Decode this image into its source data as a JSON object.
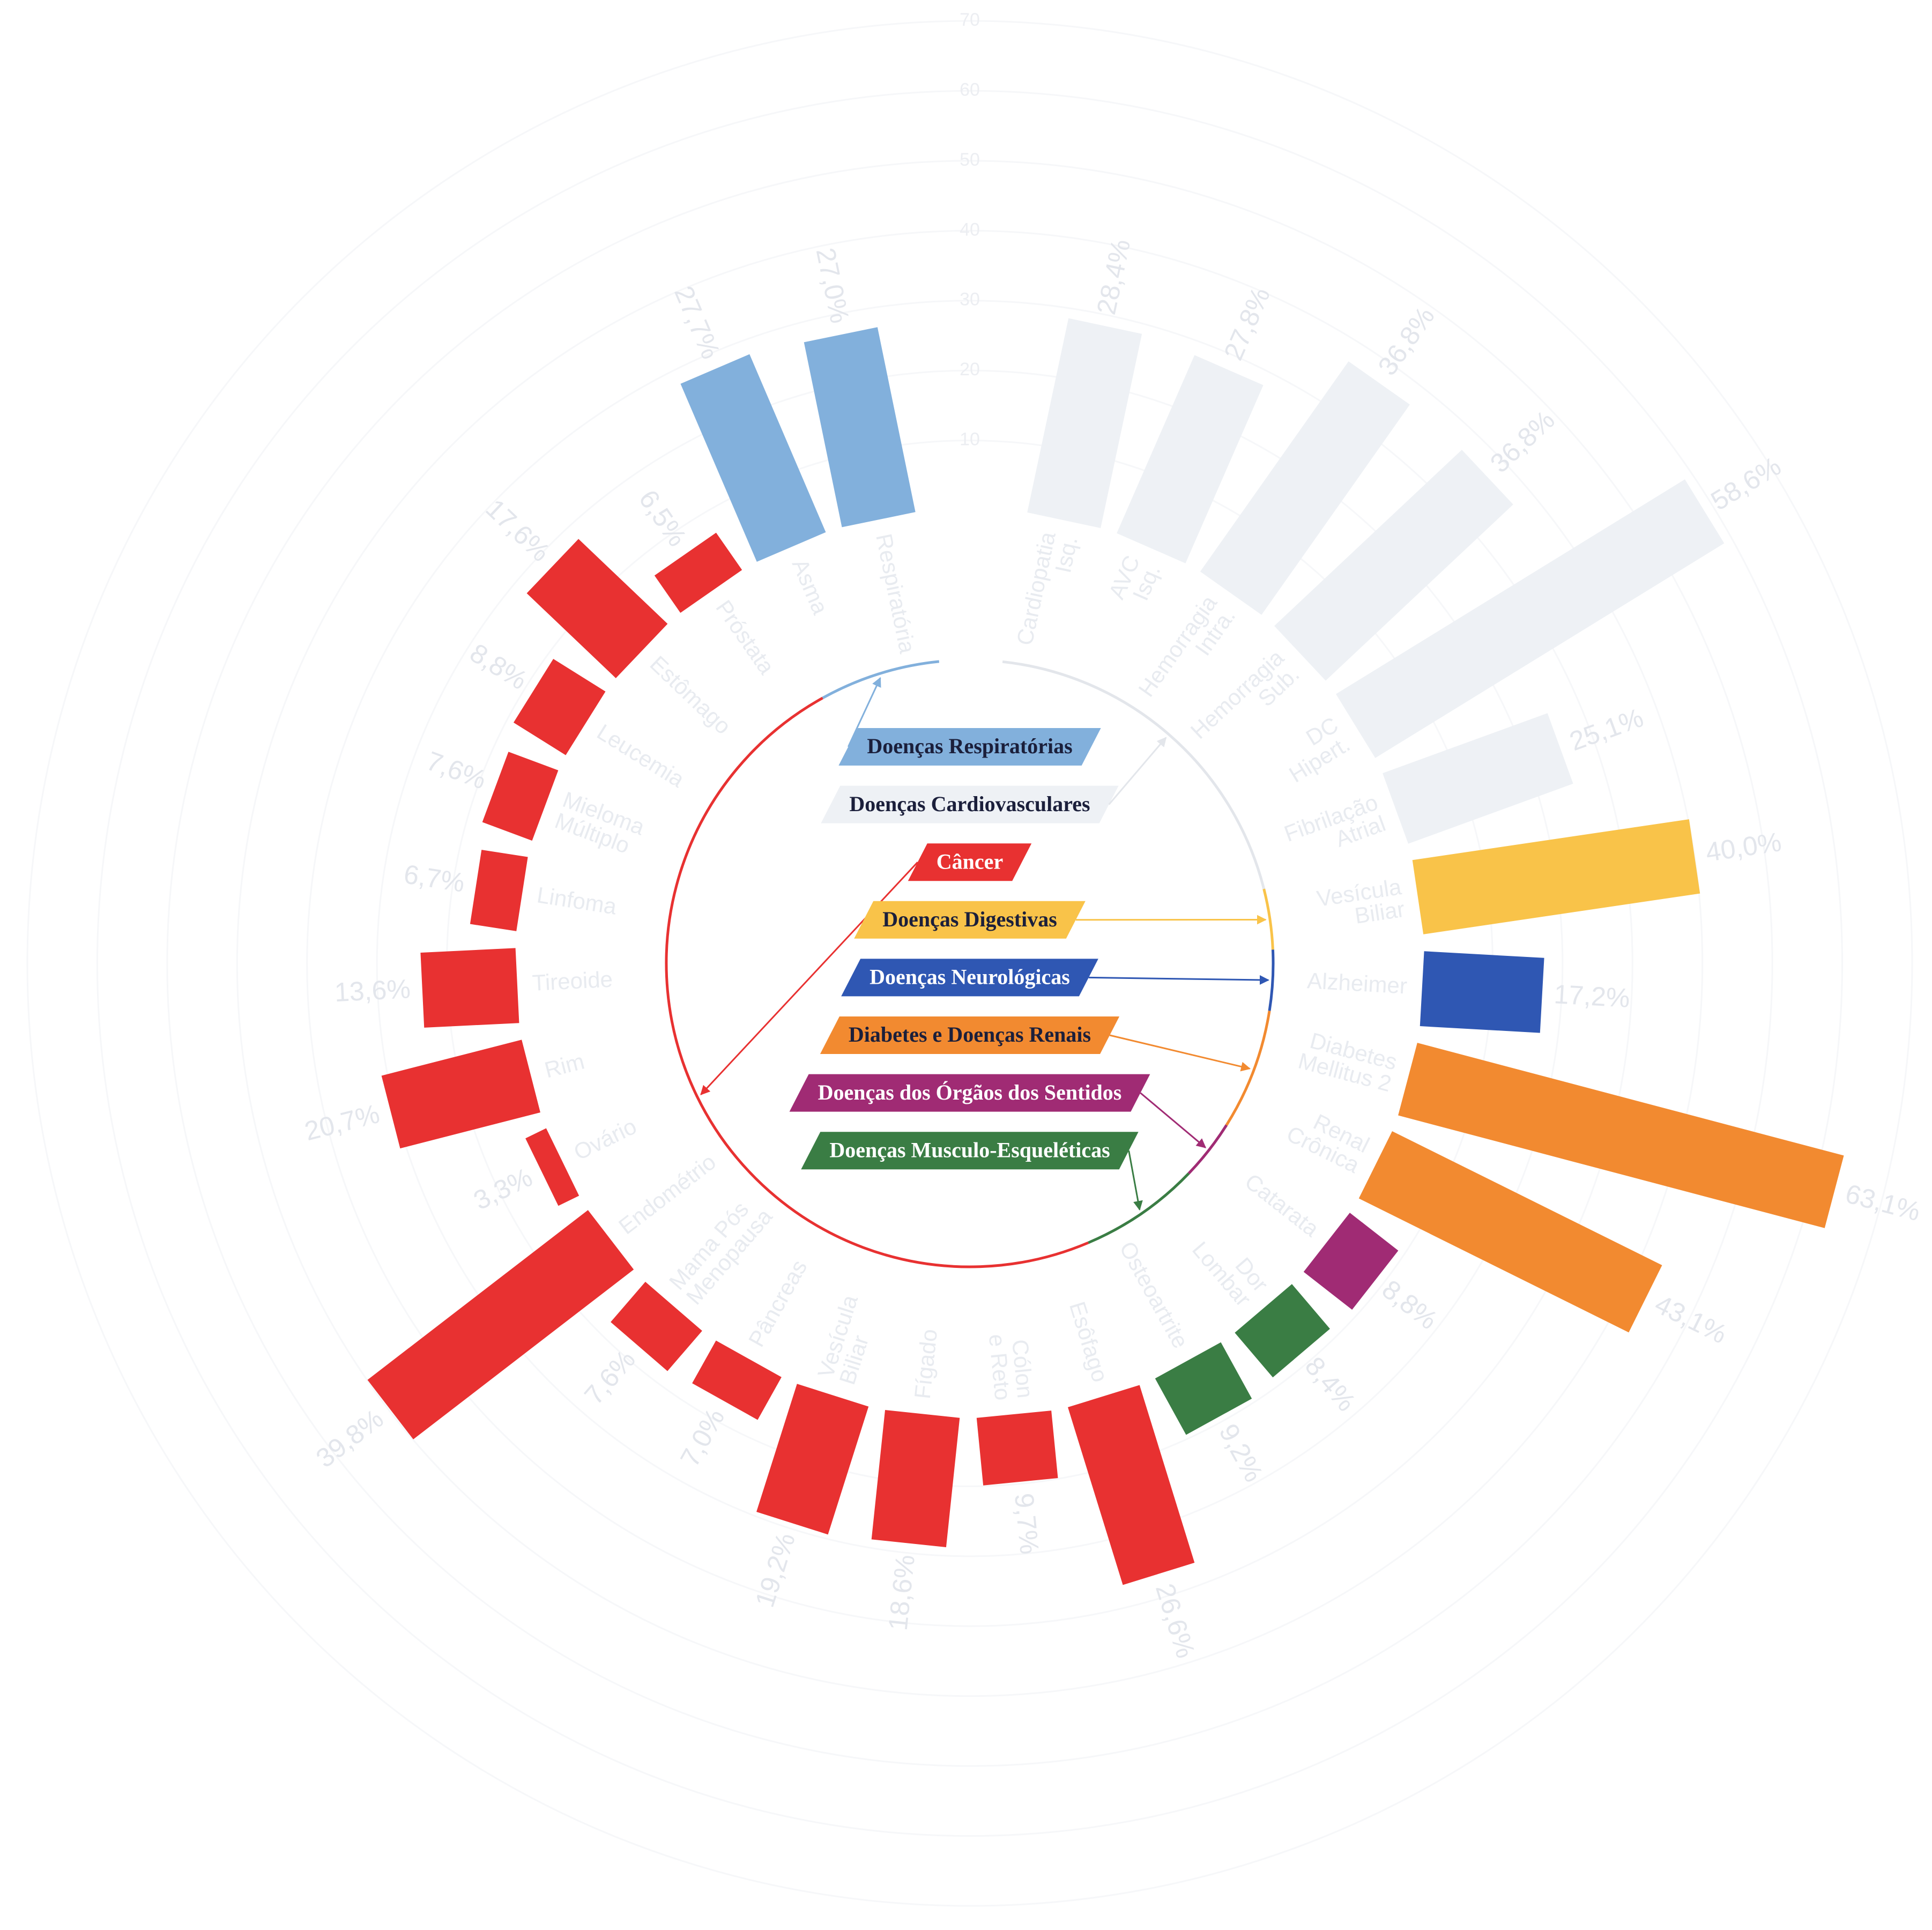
{
  "chart_data": {
    "type": "radial-bar",
    "categories": [
      "Cardiopatia\nIsq.",
      "AVC\nIsq.",
      "Hemorragia\nIntra.",
      "Hemorragia\nSub.",
      "DC\nHipert.",
      "Fibrilação\nAtrial",
      "Vesícula\nBiliar",
      "Alzheimer",
      "Diabetes\nMellitus 2",
      "Renal\nCrônica",
      "Catarata",
      "Dor\nLombar",
      "Osteoartrite",
      "Esôfago",
      "Cólon\ne Reto",
      "Fígado",
      "Vesícula\nBiliar",
      "Pâncreas",
      "Mama Pós\nMenopausa",
      "Endométrio",
      "Ovário",
      "Rim",
      "Tireoide",
      "Linfoma",
      "Mieloma\nMúltiplo",
      "Leucemia",
      "Estômago",
      "Próstata",
      "Asma",
      "Respiratória"
    ],
    "series": [
      {
        "name": "Doenças Respiratórias",
        "color": "#82b0dc",
        "values": [
          null,
          null,
          null,
          null,
          null,
          null,
          null,
          null,
          null,
          null,
          null,
          null,
          null,
          null,
          null,
          null,
          null,
          null,
          null,
          null,
          null,
          null,
          null,
          null,
          null,
          null,
          null,
          null,
          27.7,
          27.0
        ]
      },
      {
        "name": "Doenças Cardiovasculares",
        "color": "#eef1f5",
        "values": [
          28.4,
          27.8,
          36.8,
          36.8,
          58.6,
          25.1,
          null,
          null,
          null,
          null,
          null,
          null,
          null,
          null,
          null,
          null,
          null,
          null,
          null,
          null,
          null,
          null,
          null,
          null,
          null,
          null,
          null,
          null,
          null,
          null
        ]
      },
      {
        "name": "Câncer",
        "color": "#e83131",
        "values": [
          null,
          null,
          null,
          null,
          null,
          null,
          null,
          null,
          null,
          null,
          null,
          null,
          null,
          26.6,
          9.7,
          18.6,
          19.2,
          7.0,
          7.6,
          39.8,
          3.3,
          20.7,
          13.6,
          6.7,
          7.6,
          8.8,
          17.6,
          6.5,
          null,
          null
        ]
      },
      {
        "name": "Doenças Digestivas",
        "color": "#f9c349",
        "values": [
          null,
          null,
          null,
          null,
          null,
          null,
          40.0,
          null,
          null,
          null,
          null,
          null,
          null,
          null,
          null,
          null,
          null,
          null,
          null,
          null,
          null,
          null,
          null,
          null,
          null,
          null,
          null,
          null,
          null,
          null
        ]
      },
      {
        "name": "Doenças Neurológicas",
        "color": "#2f57b3",
        "values": [
          null,
          null,
          null,
          null,
          null,
          null,
          null,
          17.2,
          null,
          null,
          null,
          null,
          null,
          null,
          null,
          null,
          null,
          null,
          null,
          null,
          null,
          null,
          null,
          null,
          null,
          null,
          null,
          null,
          null,
          null
        ]
      },
      {
        "name": "Diabetes e Doenças Renais",
        "color": "#f28a30",
        "values": [
          null,
          null,
          null,
          null,
          null,
          null,
          null,
          null,
          63.1,
          43.1,
          null,
          null,
          null,
          null,
          null,
          null,
          null,
          null,
          null,
          null,
          null,
          null,
          null,
          null,
          null,
          null,
          null,
          null,
          null,
          null
        ]
      },
      {
        "name": "Doenças dos Órgãos dos Sentidos",
        "color": "#a02b74",
        "values": [
          null,
          null,
          null,
          null,
          null,
          null,
          null,
          null,
          null,
          null,
          8.8,
          null,
          null,
          null,
          null,
          null,
          null,
          null,
          null,
          null,
          null,
          null,
          null,
          null,
          null,
          null,
          null,
          null,
          null,
          null
        ]
      },
      {
        "name": "Doenças Musculo-Esqueléticas",
        "color": "#3a7d44",
        "values": [
          null,
          null,
          null,
          null,
          null,
          null,
          null,
          null,
          null,
          null,
          null,
          8.4,
          9.2,
          null,
          null,
          null,
          null,
          null,
          null,
          null,
          null,
          null,
          null,
          null,
          null,
          null,
          null,
          null,
          null,
          null
        ]
      }
    ],
    "value_labels": [
      "28,4%",
      "27,8%",
      "36,8%",
      "36,8%",
      "58,6%",
      "25,1%",
      "40,0%",
      "17,2%",
      "63,1%",
      "43,1%",
      "8,8%",
      "8,4%",
      "9,2%",
      "26,6%",
      "9,7%",
      "18,6%",
      "19,2%",
      "7,0%",
      "7,6%",
      "39,8%",
      "3,3%",
      "20,7%",
      "13,6%",
      "6,7%",
      "7,6%",
      "8,8%",
      "17,6%",
      "6,5%",
      "27,7%",
      "27,0%"
    ],
    "ylim": [
      0,
      70
    ],
    "yticks": [
      10,
      20,
      30,
      40,
      50,
      60,
      70
    ],
    "grid": true
  }
}
